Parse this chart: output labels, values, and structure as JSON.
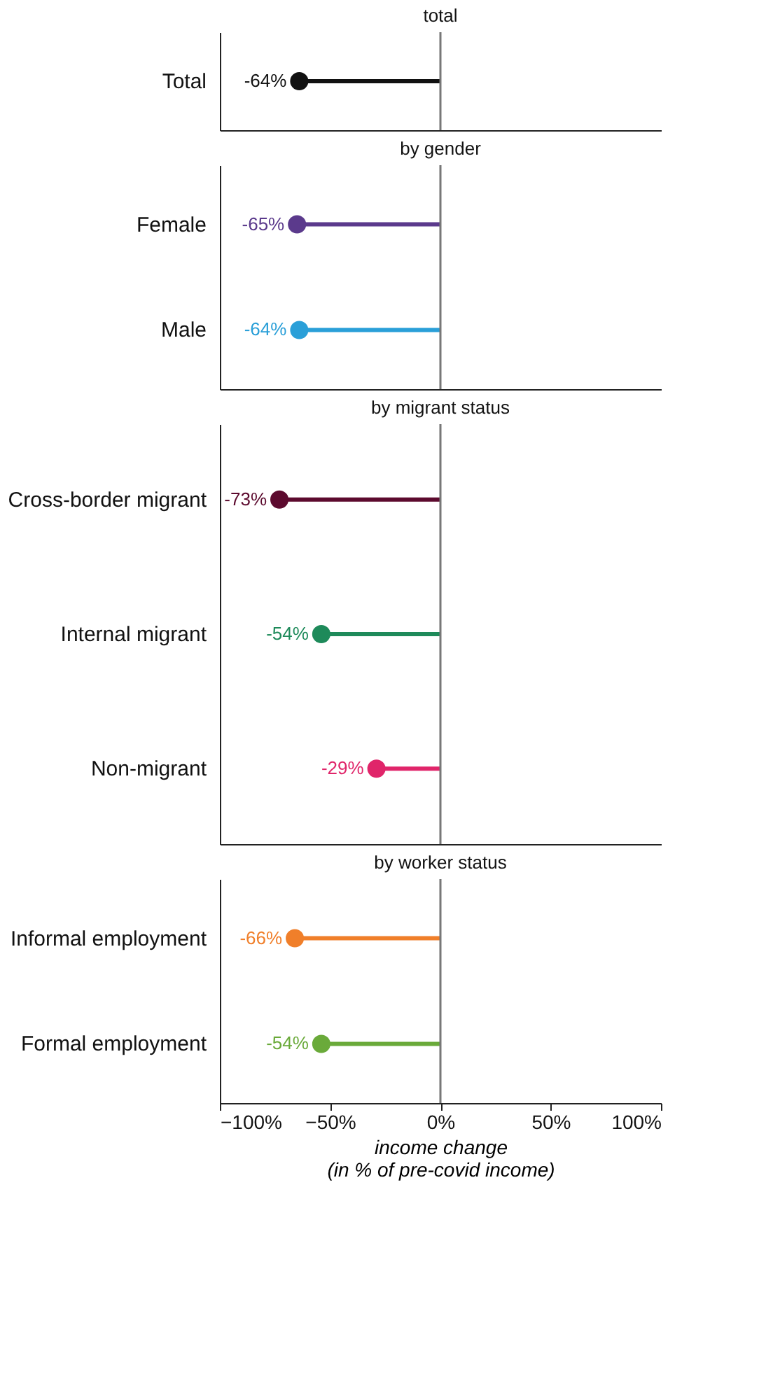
{
  "chart_data": [
    {
      "type": "lollipop",
      "orientation": "horizontal",
      "title": "total",
      "categories": [
        "Total"
      ],
      "values": [
        -64
      ],
      "colors": [
        "#111111"
      ],
      "value_labels": [
        "-64%"
      ],
      "xlim": [
        -100,
        100
      ],
      "tick_labels": "y",
      "marker": "circle",
      "ref_lines": [
        {
          "axis": "x",
          "value": 0,
          "color": "#777777"
        }
      ]
    },
    {
      "type": "lollipop",
      "orientation": "horizontal",
      "title": "by gender",
      "categories": [
        "Female",
        "Male"
      ],
      "values": [
        -65,
        -64
      ],
      "colors": [
        "#5b3a8c",
        "#2a9fd8"
      ],
      "value_labels": [
        "-65%",
        "-64%"
      ],
      "xlim": [
        -100,
        100
      ],
      "tick_labels": "y",
      "marker": "circle",
      "ref_lines": [
        {
          "axis": "x",
          "value": 0,
          "color": "#777777"
        }
      ]
    },
    {
      "type": "lollipop",
      "orientation": "horizontal",
      "title": "by migrant status",
      "categories": [
        "Cross-border migrant",
        "Internal migrant",
        "Non-migrant"
      ],
      "values": [
        -73,
        -54,
        -29
      ],
      "colors": [
        "#5c0a2e",
        "#1e8a5a",
        "#e0256a"
      ],
      "value_labels": [
        "-73%",
        "-54%",
        "-29%"
      ],
      "xlim": [
        -100,
        100
      ],
      "tick_labels": "y",
      "marker": "circle",
      "ref_lines": [
        {
          "axis": "x",
          "value": 0,
          "color": "#777777"
        }
      ]
    },
    {
      "type": "lollipop",
      "orientation": "horizontal",
      "title": "by worker status",
      "categories": [
        "Informal employment",
        "Formal employment"
      ],
      "values": [
        -66,
        -54
      ],
      "colors": [
        "#f07f2a",
        "#6aaa3a"
      ],
      "value_labels": [
        "-66%",
        "-54%"
      ],
      "xlim": [
        -100,
        100
      ],
      "xticks": [
        {
          "value": -100,
          "label": "−100%"
        },
        {
          "value": -50,
          "label": "−50%"
        },
        {
          "value": 0,
          "label": "0%"
        },
        {
          "value": 50,
          "label": "50%"
        },
        {
          "value": 100,
          "label": "100%"
        }
      ],
      "xlabel": "income change\n(in % of pre-covid income)",
      "marker": "circle",
      "ref_lines": [
        {
          "axis": "x",
          "value": 0,
          "color": "#777777"
        }
      ]
    }
  ]
}
